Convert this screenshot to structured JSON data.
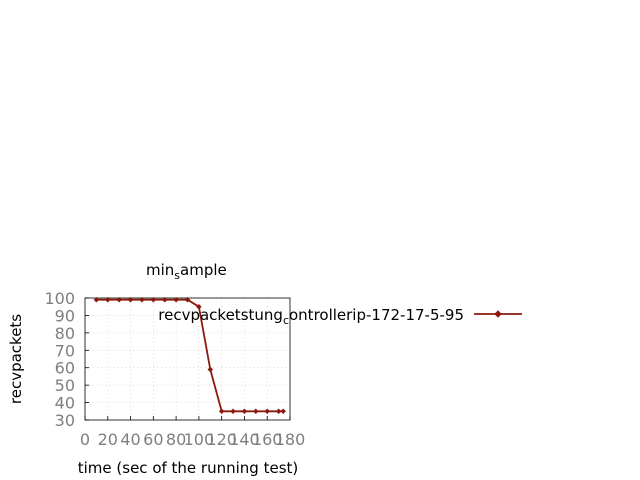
{
  "chart_data": {
    "type": "line",
    "title_main": "min",
    "title_sub": "s",
    "title_rest": "ample",
    "xlabel": "time (sec of the running test)",
    "ylabel": "recvpackets",
    "xlim": [
      0,
      180
    ],
    "ylim": [
      30,
      100
    ],
    "xticks": [
      0,
      20,
      40,
      60,
      80,
      100,
      120,
      140,
      160,
      180
    ],
    "yticks": [
      30,
      40,
      50,
      60,
      70,
      80,
      90,
      100
    ],
    "grid": true,
    "legend_position": "right",
    "series": [
      {
        "name_main": "recvpacketstung",
        "name_sub": "c",
        "name_rest": "ontrollerip-172-17-5-95",
        "color": "#8b1a0e",
        "x": [
          10,
          20,
          30,
          40,
          50,
          60,
          70,
          80,
          90,
          100,
          110,
          120,
          130,
          140,
          150,
          160,
          170,
          174
        ],
        "y": [
          99,
          99,
          99,
          99,
          99,
          99,
          99,
          99,
          99,
          95,
          59,
          35,
          35,
          35,
          35,
          35,
          35,
          35
        ]
      }
    ]
  }
}
